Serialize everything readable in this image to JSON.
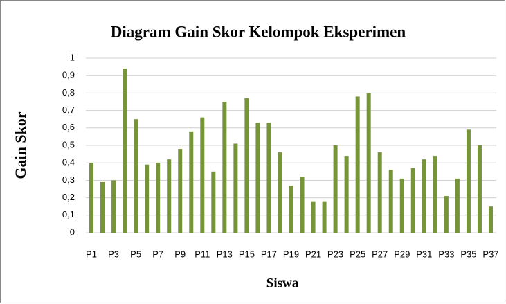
{
  "chart_data": {
    "type": "bar",
    "title": "Diagram Gain Skor Kelompok Eksperimen",
    "xlabel": "Siswa",
    "ylabel": "Gain Skor",
    "categories": [
      "P1",
      null,
      "P3",
      null,
      "P5",
      null,
      "P7",
      null,
      "P9",
      null,
      "P11",
      null,
      "P13",
      null,
      "P15",
      null,
      "P17",
      null,
      "P19",
      null,
      "P21",
      null,
      "P23",
      null,
      "P25",
      null,
      "P27",
      null,
      "P29",
      null,
      "P31",
      null,
      "P33",
      null,
      "P35",
      null,
      "P37"
    ],
    "values": [
      0.4,
      0.29,
      0.3,
      0.94,
      0.65,
      0.39,
      0.4,
      0.42,
      0.48,
      0.58,
      0.66,
      0.35,
      0.75,
      0.51,
      0.77,
      0.63,
      0.63,
      0.46,
      0.27,
      0.32,
      0.18,
      0.18,
      0.5,
      0.44,
      0.78,
      0.8,
      0.46,
      0.36,
      0.31,
      0.37,
      0.42,
      0.44,
      0.21,
      0.31,
      0.59,
      0.5,
      0.15
    ],
    "color": "#77933c",
    "ylim": [
      0,
      1
    ],
    "yticks": [
      0,
      {
        "value": 0.1,
        "label": "0,1"
      },
      {
        "value": 0.2,
        "label": "0,2"
      },
      {
        "value": 0.3,
        "label": "0,3"
      },
      {
        "value": 0.4,
        "label": "0,4"
      },
      {
        "value": 0.5,
        "label": "0,5"
      },
      {
        "value": 0.6,
        "label": "0,6"
      },
      {
        "value": 0.7,
        "label": "0,7"
      },
      {
        "value": 0.8,
        "label": "0,8"
      },
      {
        "value": 0.9,
        "label": "0,9"
      },
      1
    ],
    "grid": true
  }
}
